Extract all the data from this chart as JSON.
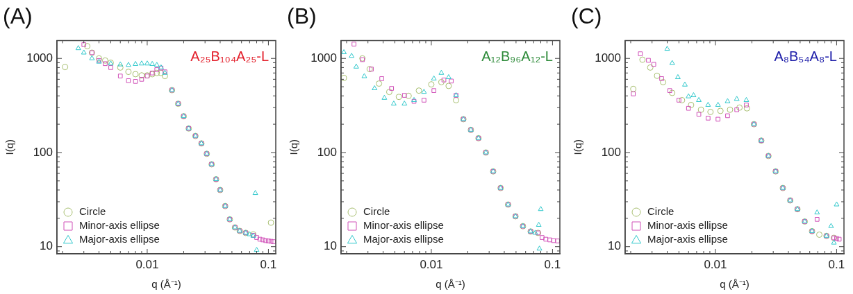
{
  "chart_data": [
    {
      "type": "scatter",
      "title": "(A)",
      "xlabel": "q (Å⁻¹)",
      "ylabel": "I(q)",
      "annotations": [
        "A₂₅B₁₀₄A₂₅-L"
      ],
      "log": "xy",
      "xlim": [
        0.0018,
        0.115
      ],
      "ylim": [
        8.4,
        1550
      ],
      "xticks": [
        {
          "value": 0.002,
          "label": null
        },
        {
          "value": 0.003,
          "label": null
        },
        {
          "value": 0.004,
          "label": null
        },
        {
          "value": 0.005,
          "label": null
        },
        {
          "value": 0.006,
          "label": null
        },
        {
          "value": 0.007,
          "label": null
        },
        {
          "value": 0.008,
          "label": null
        },
        {
          "value": 0.009,
          "label": null
        },
        {
          "value": 0.01,
          "label": "0.01"
        },
        {
          "value": 0.02,
          "label": null
        },
        {
          "value": 0.03,
          "label": null
        },
        {
          "value": 0.04,
          "label": null
        },
        {
          "value": 0.05,
          "label": null
        },
        {
          "value": 0.06,
          "label": null
        },
        {
          "value": 0.07,
          "label": null
        },
        {
          "value": 0.08,
          "label": null
        },
        {
          "value": 0.09,
          "label": null
        },
        {
          "value": 0.1,
          "label": "0.1"
        }
      ],
      "yticks": [
        {
          "value": 9,
          "label": null
        },
        10,
        {
          "value": 20,
          "label": null
        },
        {
          "value": 30,
          "label": null
        },
        {
          "value": 40,
          "label": null
        },
        {
          "value": 50,
          "label": null
        },
        {
          "value": 60,
          "label": null
        },
        {
          "value": 70,
          "label": null
        },
        {
          "value": 80,
          "label": null
        },
        {
          "value": 90,
          "label": null
        },
        100,
        {
          "value": 200,
          "label": null
        },
        {
          "value": 300,
          "label": null
        },
        {
          "value": 400,
          "label": null
        },
        {
          "value": 500,
          "label": null
        },
        {
          "value": 600,
          "label": null
        },
        {
          "value": 700,
          "label": null
        },
        {
          "value": 800,
          "label": null
        },
        {
          "value": 900,
          "label": null
        },
        1000
      ],
      "grid": false,
      "legend": "bottom left",
      "series": [
        {
          "name": "Circle",
          "color": "#a8bf70",
          "marker": "circle",
          "x": [
            0.0021,
            0.0032,
            0.0035,
            0.004,
            0.0045,
            0.005,
            0.006,
            0.007,
            0.008,
            0.009,
            0.01,
            0.011,
            0.012,
            0.013,
            0.014,
            0.016,
            0.018,
            0.02,
            0.022,
            0.025,
            0.028,
            0.031,
            0.034,
            0.037,
            0.04,
            0.044,
            0.048,
            0.053,
            0.058,
            0.065,
            0.075,
            0.105
          ],
          "values": [
            810,
            1350,
            1150,
            1000,
            950,
            900,
            800,
            720,
            680,
            660,
            660,
            680,
            700,
            700,
            650,
            460,
            330,
            243,
            180,
            150,
            125,
            97,
            75,
            52,
            40,
            27,
            19.5,
            16,
            14.7,
            14,
            13.5,
            18
          ]
        },
        {
          "name": "Minor-axis ellipse",
          "color": "#d050b8",
          "marker": "square",
          "x": [
            0.003,
            0.0035,
            0.004,
            0.0045,
            0.005,
            0.006,
            0.007,
            0.008,
            0.009,
            0.01,
            0.011,
            0.012,
            0.013,
            0.014,
            0.016,
            0.018,
            0.02,
            0.022,
            0.025,
            0.028,
            0.031,
            0.034,
            0.037,
            0.04,
            0.044,
            0.048,
            0.053,
            0.058,
            0.065,
            0.075,
            0.08,
            0.085,
            0.09,
            0.095,
            0.1,
            0.105,
            0.11
          ],
          "values": [
            1400,
            1150,
            950,
            880,
            800,
            650,
            580,
            570,
            600,
            650,
            700,
            760,
            790,
            720,
            460,
            330,
            243,
            180,
            150,
            125,
            97,
            75,
            52,
            40,
            27,
            19.5,
            16,
            14.7,
            14,
            13.2,
            12.5,
            12,
            11.8,
            11.6,
            11.5,
            11.4,
            11.3
          ]
        },
        {
          "name": "Major-axis ellipse",
          "color": "#30c8cc",
          "marker": "triangle",
          "x": [
            0.0027,
            0.003,
            0.0035,
            0.004,
            0.005,
            0.006,
            0.007,
            0.008,
            0.009,
            0.01,
            0.011,
            0.012,
            0.013,
            0.014,
            0.016,
            0.018,
            0.02,
            0.022,
            0.025,
            0.028,
            0.031,
            0.034,
            0.037,
            0.04,
            0.044,
            0.048,
            0.053,
            0.058,
            0.065,
            0.07,
            0.075,
            0.078,
            0.08
          ],
          "values": [
            1280,
            1150,
            1000,
            920,
            880,
            860,
            850,
            870,
            880,
            880,
            870,
            850,
            800,
            700,
            460,
            330,
            243,
            180,
            150,
            125,
            97,
            75,
            52,
            40,
            27,
            19.5,
            16,
            14.7,
            14,
            13.5,
            13,
            37,
            9.2
          ]
        }
      ]
    },
    {
      "type": "scatter",
      "title": "(B)",
      "xlabel": "q (Å⁻¹)",
      "ylabel": "I(q)",
      "annotations": [
        "A₁₂B₉₆A₁₂-L"
      ],
      "log": "xy",
      "xlim": [
        0.0018,
        0.115
      ],
      "ylim": [
        8.4,
        1550
      ],
      "xticks": [
        {
          "value": 0.002,
          "label": null
        },
        {
          "value": 0.003,
          "label": null
        },
        {
          "value": 0.004,
          "label": null
        },
        {
          "value": 0.005,
          "label": null
        },
        {
          "value": 0.006,
          "label": null
        },
        {
          "value": 0.007,
          "label": null
        },
        {
          "value": 0.008,
          "label": null
        },
        {
          "value": 0.009,
          "label": null
        },
        {
          "value": 0.01,
          "label": "0.01"
        },
        {
          "value": 0.02,
          "label": null
        },
        {
          "value": 0.03,
          "label": null
        },
        {
          "value": 0.04,
          "label": null
        },
        {
          "value": 0.05,
          "label": null
        },
        {
          "value": 0.06,
          "label": null
        },
        {
          "value": 0.07,
          "label": null
        },
        {
          "value": 0.08,
          "label": null
        },
        {
          "value": 0.09,
          "label": null
        },
        {
          "value": 0.1,
          "label": "0.1"
        }
      ],
      "yticks": [
        {
          "value": 9,
          "label": null
        },
        10,
        {
          "value": 20,
          "label": null
        },
        {
          "value": 30,
          "label": null
        },
        {
          "value": 40,
          "label": null
        },
        {
          "value": 50,
          "label": null
        },
        {
          "value": 60,
          "label": null
        },
        {
          "value": 70,
          "label": null
        },
        {
          "value": 80,
          "label": null
        },
        {
          "value": 90,
          "label": null
        },
        100,
        {
          "value": 200,
          "label": null
        },
        {
          "value": 300,
          "label": null
        },
        {
          "value": 400,
          "label": null
        },
        {
          "value": 500,
          "label": null
        },
        {
          "value": 600,
          "label": null
        },
        {
          "value": 700,
          "label": null
        },
        {
          "value": 800,
          "label": null
        },
        {
          "value": 900,
          "label": null
        },
        1000
      ],
      "grid": false,
      "legend": "bottom left",
      "series": [
        {
          "name": "Circle",
          "color": "#a8bf70",
          "marker": "circle",
          "x": [
            0.0019,
            0.0027,
            0.0031,
            0.0037,
            0.0045,
            0.0054,
            0.0065,
            0.0079,
            0.01,
            0.0121,
            0.0139,
            0.016,
            0.0184,
            0.0212,
            0.0245,
            0.0282,
            0.0324,
            0.0373,
            0.043,
            0.0495,
            0.057,
            0.066,
            0.076
          ],
          "values": [
            620,
            1000,
            770,
            540,
            440,
            390,
            400,
            455,
            530,
            560,
            510,
            360,
            226,
            174,
            142,
            100,
            63,
            42,
            28,
            21,
            16.5,
            14.5,
            14
          ]
        },
        {
          "name": "Minor-axis ellipse",
          "color": "#d050b8",
          "marker": "square",
          "x": [
            0.0023,
            0.0027,
            0.0032,
            0.0039,
            0.0047,
            0.006,
            0.0072,
            0.0087,
            0.0105,
            0.0127,
            0.0146,
            0.016,
            0.0184,
            0.0212,
            0.0245,
            0.0282,
            0.0324,
            0.0373,
            0.043,
            0.0495,
            0.057,
            0.066,
            0.076,
            0.082,
            0.088,
            0.095,
            0.102,
            0.11
          ],
          "values": [
            1420,
            970,
            770,
            610,
            480,
            405,
            350,
            360,
            455,
            590,
            575,
            405,
            226,
            174,
            142,
            100,
            63,
            42,
            28,
            21,
            16.5,
            14.5,
            14,
            12.5,
            12,
            11.8,
            11.6,
            11.5
          ]
        },
        {
          "name": "Major-axis ellipse",
          "color": "#30c8cc",
          "marker": "triangle",
          "x": [
            0.0019,
            0.0022,
            0.0024,
            0.0028,
            0.0034,
            0.0041,
            0.0049,
            0.006,
            0.0072,
            0.0087,
            0.0105,
            0.0121,
            0.0139,
            0.016,
            0.0184,
            0.0212,
            0.0245,
            0.0282,
            0.0324,
            0.0373,
            0.043,
            0.0495,
            0.057,
            0.066,
            0.072,
            0.077,
            0.078,
            0.08
          ],
          "values": [
            1160,
            1060,
            815,
            645,
            480,
            380,
            330,
            330,
            360,
            440,
            610,
            700,
            630,
            405,
            226,
            174,
            142,
            100,
            63,
            42,
            28,
            21,
            16.5,
            14.5,
            14,
            17,
            9.5,
            25
          ]
        }
      ]
    },
    {
      "type": "scatter",
      "title": "(C)",
      "xlabel": "q (Å⁻¹)",
      "ylabel": "I(q)",
      "annotations": [
        "A₈B₅₄A₈-L"
      ],
      "log": "xy",
      "xlim": [
        0.0018,
        0.115
      ],
      "ylim": [
        8.4,
        1550
      ],
      "xticks": [
        {
          "value": 0.002,
          "label": null
        },
        {
          "value": 0.003,
          "label": null
        },
        {
          "value": 0.004,
          "label": null
        },
        {
          "value": 0.005,
          "label": null
        },
        {
          "value": 0.006,
          "label": null
        },
        {
          "value": 0.007,
          "label": null
        },
        {
          "value": 0.008,
          "label": null
        },
        {
          "value": 0.009,
          "label": null
        },
        {
          "value": 0.01,
          "label": "0.01"
        },
        {
          "value": 0.02,
          "label": null
        },
        {
          "value": 0.03,
          "label": null
        },
        {
          "value": 0.04,
          "label": null
        },
        {
          "value": 0.05,
          "label": null
        },
        {
          "value": 0.06,
          "label": null
        },
        {
          "value": 0.07,
          "label": null
        },
        {
          "value": 0.08,
          "label": null
        },
        {
          "value": 0.09,
          "label": null
        },
        {
          "value": 0.1,
          "label": "0.1"
        }
      ],
      "yticks": [
        {
          "value": 9,
          "label": null
        },
        10,
        {
          "value": 20,
          "label": null
        },
        {
          "value": 30,
          "label": null
        },
        {
          "value": 40,
          "label": null
        },
        {
          "value": 50,
          "label": null
        },
        {
          "value": 60,
          "label": null
        },
        {
          "value": 70,
          "label": null
        },
        {
          "value": 80,
          "label": null
        },
        {
          "value": 90,
          "label": null
        },
        100,
        {
          "value": 200,
          "label": null
        },
        {
          "value": 300,
          "label": null
        },
        {
          "value": 400,
          "label": null
        },
        {
          "value": 500,
          "label": null
        },
        {
          "value": 600,
          "label": null
        },
        {
          "value": 700,
          "label": null
        },
        {
          "value": 800,
          "label": null
        },
        {
          "value": 900,
          "label": null
        },
        1000
      ],
      "grid": false,
      "legend": "bottom left",
      "series": [
        {
          "name": "Circle",
          "color": "#a8bf70",
          "marker": "circle",
          "x": [
            0.0021,
            0.0025,
            0.0029,
            0.0033,
            0.0037,
            0.0044,
            0.0053,
            0.0063,
            0.0076,
            0.0091,
            0.011,
            0.0132,
            0.0158,
            0.0182,
            0.0208,
            0.0239,
            0.0274,
            0.0314,
            0.036,
            0.0414,
            0.0475,
            0.0546,
            0.0627,
            0.072,
            0.0825,
            0.095
          ],
          "values": [
            474,
            970,
            800,
            654,
            560,
            430,
            360,
            320,
            285,
            270,
            277,
            285,
            300,
            295,
            200,
            134,
            92,
            63,
            42,
            31,
            25,
            18.5,
            14.6,
            13.4,
            13,
            12.4
          ]
        },
        {
          "name": "Minor-axis ellipse",
          "color": "#d050b8",
          "marker": "square",
          "x": [
            0.0021,
            0.0024,
            0.0028,
            0.0031,
            0.0036,
            0.0042,
            0.005,
            0.006,
            0.0073,
            0.0087,
            0.0105,
            0.0126,
            0.015,
            0.018,
            0.0208,
            0.0239,
            0.0274,
            0.0314,
            0.036,
            0.0414,
            0.0475,
            0.0546,
            0.0627,
            0.069,
            0.0825,
            0.095,
            0.1,
            0.105
          ],
          "values": [
            420,
            1120,
            955,
            865,
            610,
            455,
            360,
            295,
            255,
            232,
            226,
            246,
            285,
            320,
            200,
            134,
            92,
            63,
            42,
            31,
            25,
            18.5,
            14.6,
            19.5,
            13,
            12.4,
            12.2,
            12
          ]
        },
        {
          "name": "Major-axis ellipse",
          "color": "#30c8cc",
          "marker": "triangle",
          "x": [
            0.004,
            0.0044,
            0.0049,
            0.0056,
            0.006,
            0.0066,
            0.0073,
            0.0087,
            0.0105,
            0.0126,
            0.015,
            0.018,
            0.0208,
            0.0239,
            0.0274,
            0.0314,
            0.036,
            0.0414,
            0.0475,
            0.0546,
            0.0627,
            0.069,
            0.0825,
            0.09,
            0.095,
            0.1
          ],
          "values": [
            1260,
            890,
            630,
            525,
            394,
            405,
            360,
            320,
            320,
            350,
            370,
            360,
            200,
            134,
            92,
            63,
            42,
            31,
            25,
            18.5,
            14.6,
            23,
            13,
            16.5,
            11,
            28
          ]
        }
      ]
    }
  ]
}
